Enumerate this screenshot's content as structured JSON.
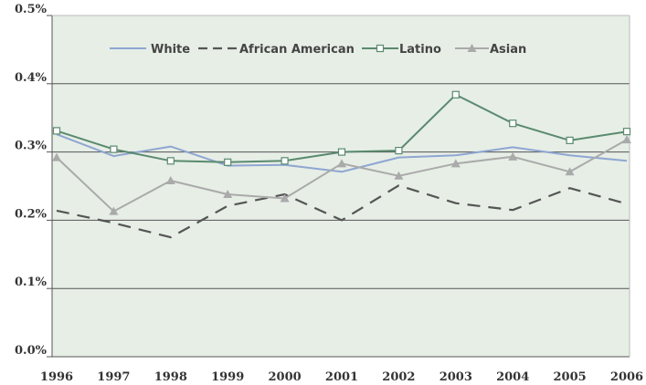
{
  "chart_data": {
    "type": "line",
    "title": "",
    "xlabel": "",
    "ylabel": "",
    "x": [
      "1996",
      "1997",
      "1998",
      "1999",
      "2000",
      "2001",
      "2002",
      "2003",
      "2004",
      "2005",
      "2006"
    ],
    "y_ticks": [
      "0.0%",
      "0.1%",
      "0.2%",
      "0.3%",
      "0.4%",
      "0.5%"
    ],
    "ylim": [
      0,
      0.5
    ],
    "grid": "horizontal",
    "legend_position": "top",
    "background_color": "#e6eee6",
    "series": [
      {
        "name": "White",
        "color": "#8fa6d2",
        "dash": "solid",
        "marker": "none",
        "values": [
          0.326,
          0.294,
          0.308,
          0.28,
          0.281,
          0.271,
          0.292,
          0.295,
          0.307,
          0.295,
          0.287
        ]
      },
      {
        "name": "African American",
        "color": "#555555",
        "dash": "dashed",
        "marker": "none",
        "values": [
          0.214,
          0.196,
          0.175,
          0.221,
          0.238,
          0.2,
          0.251,
          0.225,
          0.215,
          0.247,
          0.224
        ]
      },
      {
        "name": "Latino",
        "color": "#5a8a6e",
        "dash": "solid",
        "marker": "open-square",
        "values": [
          0.331,
          0.304,
          0.287,
          0.285,
          0.287,
          0.3,
          0.302,
          0.384,
          0.342,
          0.317,
          0.33
        ]
      },
      {
        "name": "Asian",
        "color": "#aaaaaa",
        "dash": "solid",
        "marker": "triangle",
        "values": [
          0.292,
          0.213,
          0.258,
          0.238,
          0.232,
          0.283,
          0.265,
          0.283,
          0.293,
          0.271,
          0.318
        ]
      }
    ]
  }
}
